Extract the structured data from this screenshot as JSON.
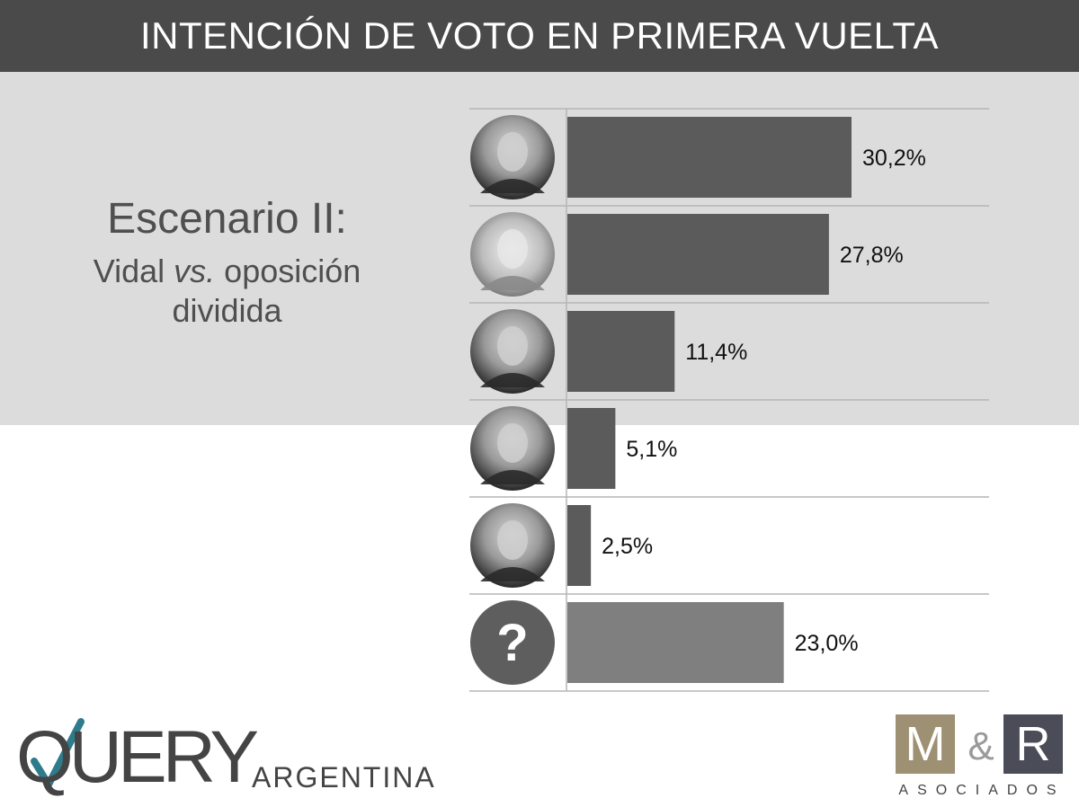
{
  "header": {
    "title": "INTENCIÓN DE VOTO EN PRIMERA VUELTA"
  },
  "scenario": {
    "title": "Escenario II:",
    "subtitle_pre": "Vidal",
    "subtitle_vs": "vs.",
    "subtitle_post": "oposición",
    "subtitle_line2": "dividida"
  },
  "colors": {
    "header_bg": "#4a4a4a",
    "panel_bg": "#dcdcdc",
    "bar": "#5b5b5b",
    "bar_unknown": "#7f7f7f",
    "gridline": "#b5b5b5"
  },
  "chart_data": {
    "type": "bar",
    "orientation": "horizontal",
    "categories": [
      "candidate-1-photo",
      "candidate-2-photo",
      "candidate-3-photo",
      "candidate-4-photo",
      "candidate-5-photo",
      "question-mark-icon"
    ],
    "values": [
      30.2,
      27.8,
      11.4,
      5.1,
      2.5,
      23.0
    ],
    "labels": [
      "30,2%",
      "27,8%",
      "11,4%",
      "5,1%",
      "2,5%",
      "23,0%"
    ],
    "title": "INTENCIÓN DE VOTO EN PRIMERA VUELTA",
    "xlim": [
      0,
      45
    ],
    "grid": true,
    "legend": "none"
  },
  "logos": {
    "query_main": "QUERY",
    "query_sub": "ARGENTINA",
    "mr_m": "M",
    "mr_amp": "&",
    "mr_r": "R",
    "mr_sub": "ASOCIADOS"
  }
}
